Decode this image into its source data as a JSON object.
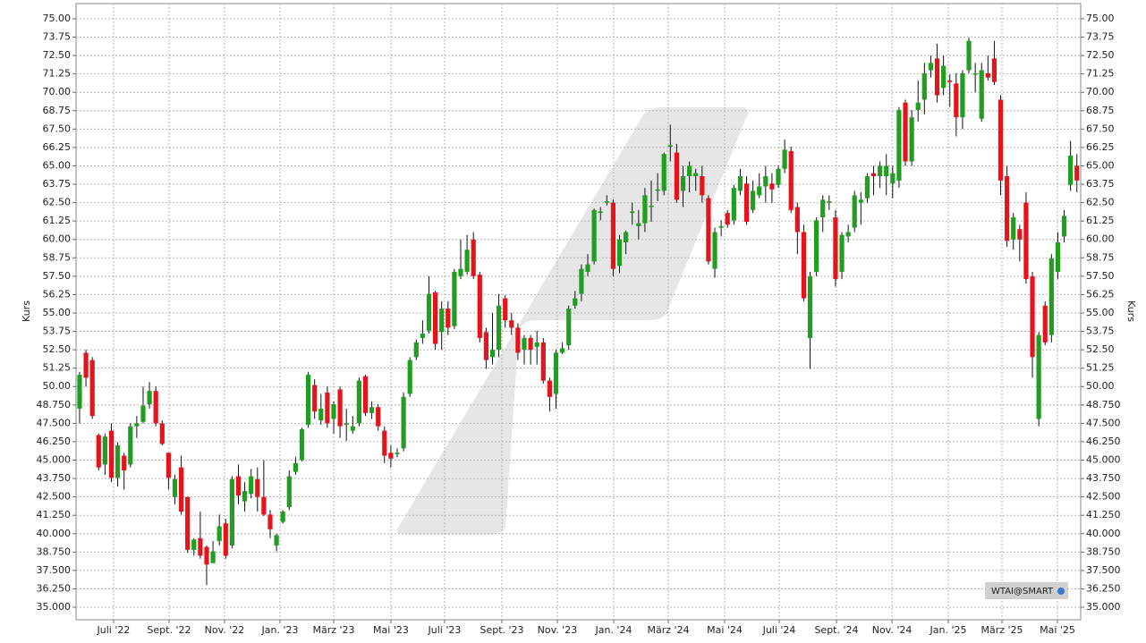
{
  "chart_data": {
    "type": "candlestick",
    "y_label": "Kurs",
    "instrument": "WTAI@SMART",
    "up_color": "#1f9e1f",
    "down_color": "#e5141c",
    "grid": true,
    "ylim": [
      34.15,
      76.03
    ],
    "xlim": [
      -0.56,
      157.6
    ],
    "yticks": [
      {
        "value": 35,
        "label": "35.000"
      },
      {
        "value": 36.25,
        "label": "36.250"
      },
      {
        "value": 37.5,
        "label": "37.500"
      },
      {
        "value": 38.75,
        "label": "38.750"
      },
      {
        "value": 40,
        "label": "40.000"
      },
      {
        "value": 41.25,
        "label": "41.250"
      },
      {
        "value": 42.5,
        "label": "42.500"
      },
      {
        "value": 43.75,
        "label": "43.750"
      },
      {
        "value": 45,
        "label": "45.000"
      },
      {
        "value": 46.25,
        "label": "46.250"
      },
      {
        "value": 47.5,
        "label": "47.500"
      },
      {
        "value": 48.75,
        "label": "48.750"
      },
      {
        "value": 50,
        "label": "50.00"
      },
      {
        "value": 51.25,
        "label": "51.25"
      },
      {
        "value": 52.5,
        "label": "52.50"
      },
      {
        "value": 53.75,
        "label": "53.75"
      },
      {
        "value": 55,
        "label": "55.00"
      },
      {
        "value": 56.25,
        "label": "56.25"
      },
      {
        "value": 57.5,
        "label": "57.50"
      },
      {
        "value": 58.75,
        "label": "58.75"
      },
      {
        "value": 60,
        "label": "60.00"
      },
      {
        "value": 61.25,
        "label": "61.25"
      },
      {
        "value": 62.5,
        "label": "62.50"
      },
      {
        "value": 63.75,
        "label": "63.75"
      },
      {
        "value": 65,
        "label": "65.00"
      },
      {
        "value": 66.25,
        "label": "66.25"
      },
      {
        "value": 67.5,
        "label": "67.50"
      },
      {
        "value": 68.75,
        "label": "68.75"
      },
      {
        "value": 70,
        "label": "70.00"
      },
      {
        "value": 71.25,
        "label": "71.25"
      },
      {
        "value": 72.5,
        "label": "72.50"
      },
      {
        "value": 73.75,
        "label": "73.75"
      },
      {
        "value": 75,
        "label": "75.00"
      }
    ],
    "xticks": [
      {
        "value": 5.35,
        "label": "Juli '22"
      },
      {
        "value": 14.08,
        "label": "Sept. '22"
      },
      {
        "value": 22.82,
        "label": "Nov. '22"
      },
      {
        "value": 31.55,
        "label": "Jan. '23"
      },
      {
        "value": 40.0,
        "label": "März '23"
      },
      {
        "value": 49.01,
        "label": "Mai '23"
      },
      {
        "value": 57.46,
        "label": "Juli '23"
      },
      {
        "value": 66.48,
        "label": "Sept. '23"
      },
      {
        "value": 75.21,
        "label": "Nov. '23"
      },
      {
        "value": 84.08,
        "label": "Jan. '24"
      },
      {
        "value": 92.68,
        "label": "März '24"
      },
      {
        "value": 101.55,
        "label": "Mai '24"
      },
      {
        "value": 110.14,
        "label": "Juli '24"
      },
      {
        "value": 119.15,
        "label": "Sept. '24"
      },
      {
        "value": 127.89,
        "label": "Nov. '24"
      },
      {
        "value": 136.76,
        "label": "Jan. '25"
      },
      {
        "value": 145.21,
        "label": "März '25"
      },
      {
        "value": 153.94,
        "label": "Mai '25"
      }
    ],
    "open": [
      48.5,
      52.3,
      51.8,
      46.7,
      44.7,
      47,
      43.8,
      45.3,
      44.7,
      47.3,
      47.6,
      48.8,
      49.7,
      47.5,
      45.5,
      42.5,
      44.5,
      42.5,
      38.9,
      39.7,
      39.1,
      38,
      39.5,
      40.7,
      39.2,
      43.9,
      42.2,
      42.7,
      43.7,
      42.5,
      41.3,
      39.2,
      40.8,
      41.8,
      44.2,
      45,
      47.4,
      50.1,
      47.7,
      49.6,
      47.8,
      49.8,
      47.4,
      47,
      47.5,
      50.7,
      48.2,
      48.6,
      47,
      45.5,
      45.4,
      45.8,
      49.5,
      52,
      53.3,
      53.8,
      56.4,
      53.7,
      55.3,
      54.1,
      57.5,
      57.8,
      60,
      57.6,
      53.7,
      52,
      52.5,
      56,
      54.5,
      54,
      52.5,
      53.3,
      52.7,
      53,
      50.4,
      49.5,
      52.3,
      52.8,
      55.5,
      56.3,
      57.8,
      58.5,
      61.8,
      62.5,
      62.5,
      58.2,
      59.8,
      61.8,
      60.9,
      61.1,
      62.2,
      63.3,
      63.3,
      66.3,
      65.9,
      63.3,
      64.3,
      64.3,
      64.3,
      62.8,
      58,
      60.8,
      61.8,
      61.3,
      63.3,
      63.8,
      62,
      63,
      63.6,
      63.8,
      63.7,
      64.8,
      66,
      62.2,
      60.5,
      53.3,
      57.8,
      61.5,
      62.5,
      61.5,
      57.8,
      60.2,
      60.8,
      62.5,
      62.8,
      64.5,
      64.3,
      64.3,
      63.8,
      64,
      69.3,
      65.3,
      68.8,
      69.5,
      71.5,
      72.3,
      70.3,
      70.8,
      70.6,
      68.3,
      71.5,
      71.2,
      68.2,
      71.3,
      72.3,
      69.5,
      64.3,
      60,
      60.7,
      62.5,
      57.5,
      47.8,
      55.5,
      53.5,
      57.8,
      60.2,
      63.7,
      65
    ],
    "high": [
      51,
      52.5,
      52,
      46.8,
      46.8,
      47.5,
      46.2,
      45.5,
      47.5,
      48,
      50,
      50.3,
      50,
      47.7,
      45.5,
      44,
      45.3,
      42.5,
      39.7,
      41.5,
      39.2,
      39.5,
      41.3,
      41,
      43.9,
      44.7,
      43.5,
      44.4,
      44.5,
      45,
      41.6,
      40,
      41.6,
      44.3,
      45.2,
      47.2,
      51,
      50.5,
      49.5,
      50,
      49,
      50,
      48.5,
      48,
      50.6,
      50.8,
      49,
      48.8,
      47.3,
      46,
      45.8,
      49.6,
      52,
      53.2,
      54.5,
      57.5,
      56.5,
      55.8,
      55.8,
      58,
      60,
      60.3,
      60.5,
      57.8,
      54,
      55,
      56.3,
      56.2,
      55,
      54.3,
      53.5,
      53.5,
      53.8,
      53.3,
      50.6,
      52.5,
      53,
      55.5,
      56.5,
      58.3,
      59,
      62.1,
      62.2,
      63,
      62.7,
      60.3,
      60.6,
      62.5,
      62,
      63.5,
      64,
      64.5,
      65.9,
      67.8,
      66.5,
      65,
      65.3,
      64.8,
      65,
      63,
      60.8,
      61.3,
      62,
      63.7,
      64.8,
      64.3,
      64,
      64.5,
      65,
      64.5,
      65,
      66.8,
      66.3,
      62.5,
      61,
      57.8,
      61.5,
      63,
      63,
      62,
      60.5,
      61,
      63.3,
      63.2,
      64.5,
      65,
      65.3,
      65.8,
      65,
      69,
      69.5,
      68.8,
      70.8,
      72,
      72.5,
      73.3,
      72.5,
      71.2,
      71.3,
      71.5,
      73.7,
      72,
      72,
      72.5,
      73.5,
      69.8,
      65,
      61.8,
      61,
      63.2,
      57.8,
      53.7,
      55.8,
      59,
      60.5,
      62,
      66.7,
      65.8
    ],
    "low": [
      47.5,
      50,
      47.8,
      44.3,
      44,
      43.5,
      43.2,
      43,
      44.5,
      46.5,
      47.5,
      48.5,
      47.3,
      46,
      43,
      42,
      41.3,
      38.7,
      38.5,
      38.3,
      36.5,
      38,
      39.2,
      38.3,
      39,
      42,
      41.5,
      42.4,
      41.5,
      41.2,
      39.7,
      38.8,
      40.7,
      41.6,
      44,
      44.9,
      47.2,
      47.8,
      47.4,
      47.2,
      46.8,
      46.5,
      46.3,
      46.8,
      47.3,
      48,
      47.8,
      47,
      44.8,
      44.5,
      45.2,
      45.6,
      49.3,
      51.8,
      52.9,
      53.6,
      52.5,
      52.5,
      53.5,
      53.9,
      57.3,
      57.6,
      57.3,
      53,
      51.2,
      51.5,
      52,
      54,
      53.5,
      51.8,
      51.5,
      51.5,
      51.5,
      50.2,
      48.3,
      48.5,
      52.2,
      52.5,
      55.3,
      55.8,
      57.5,
      58.3,
      61.3,
      62.3,
      57.5,
      57.7,
      59,
      61,
      60,
      60.5,
      61.2,
      62.6,
      63,
      65.3,
      62.5,
      62.2,
      63.2,
      63.3,
      62.5,
      58.3,
      57.4,
      60.2,
      60.8,
      61,
      63,
      61,
      61.8,
      62.8,
      62.5,
      62.5,
      63.5,
      64.5,
      61.8,
      59,
      55.8,
      51.2,
      57.5,
      60.5,
      62,
      56.8,
      57.3,
      59.8,
      60.5,
      61,
      62.5,
      63,
      63.5,
      63,
      62.8,
      63.5,
      65,
      65,
      68,
      68.5,
      71,
      69.3,
      69.8,
      69,
      67,
      67.5,
      71.3,
      70,
      68,
      70.8,
      70.5,
      63,
      59.5,
      59.3,
      58.5,
      57,
      50.6,
      47.3,
      52.8,
      53,
      57.3,
      59.8,
      63.3,
      63.2
    ],
    "close": [
      50.8,
      50.6,
      48,
      44.5,
      46.6,
      43.8,
      46,
      44.3,
      47.3,
      47.5,
      48.7,
      49.7,
      47.5,
      46.1,
      43.8,
      43.7,
      41.5,
      38.9,
      39.6,
      38.5,
      37.9,
      38.8,
      40.5,
      38.5,
      43.7,
      42.6,
      42.9,
      43.9,
      42.5,
      41.3,
      40.3,
      39.9,
      41.5,
      43.9,
      44.8,
      47.1,
      50.8,
      48.3,
      48.5,
      47.5,
      48.8,
      47.3,
      47.5,
      47.3,
      50.4,
      48.2,
      48.6,
      47.3,
      45.3,
      45.1,
      45.5,
      49.3,
      51.8,
      53,
      53.6,
      56.3,
      52.9,
      55.3,
      54,
      57.8,
      58,
      59.3,
      57.5,
      53.3,
      51.8,
      52.5,
      55.5,
      54.5,
      54,
      52.3,
      53.3,
      52.5,
      53,
      50.4,
      49.3,
      52.3,
      52.6,
      55.3,
      56,
      58,
      58.3,
      62,
      61.9,
      62.6,
      58,
      60,
      60.5,
      61.9,
      61.1,
      63,
      62.3,
      63.4,
      65.8,
      66.4,
      62.7,
      64.3,
      65,
      64.5,
      63,
      58.5,
      60.5,
      60.9,
      61,
      63.5,
      64.3,
      61.2,
      63.3,
      63.6,
      64.3,
      63.4,
      64.8,
      66.1,
      62,
      60.5,
      56,
      57.5,
      61.3,
      62.7,
      62.6,
      57.3,
      60.3,
      60.5,
      63,
      62.7,
      64.3,
      64.3,
      65,
      65,
      64.5,
      68.8,
      65.3,
      68.3,
      69.3,
      71.3,
      72,
      69.8,
      71.8,
      70.7,
      68.3,
      71.3,
      73.5,
      71.3,
      71.5,
      71,
      70.7,
      64,
      59.9,
      61.5,
      60,
      57.3,
      52,
      53.5,
      53,
      58.7,
      59.8,
      61.6,
      65.7,
      64
    ]
  }
}
